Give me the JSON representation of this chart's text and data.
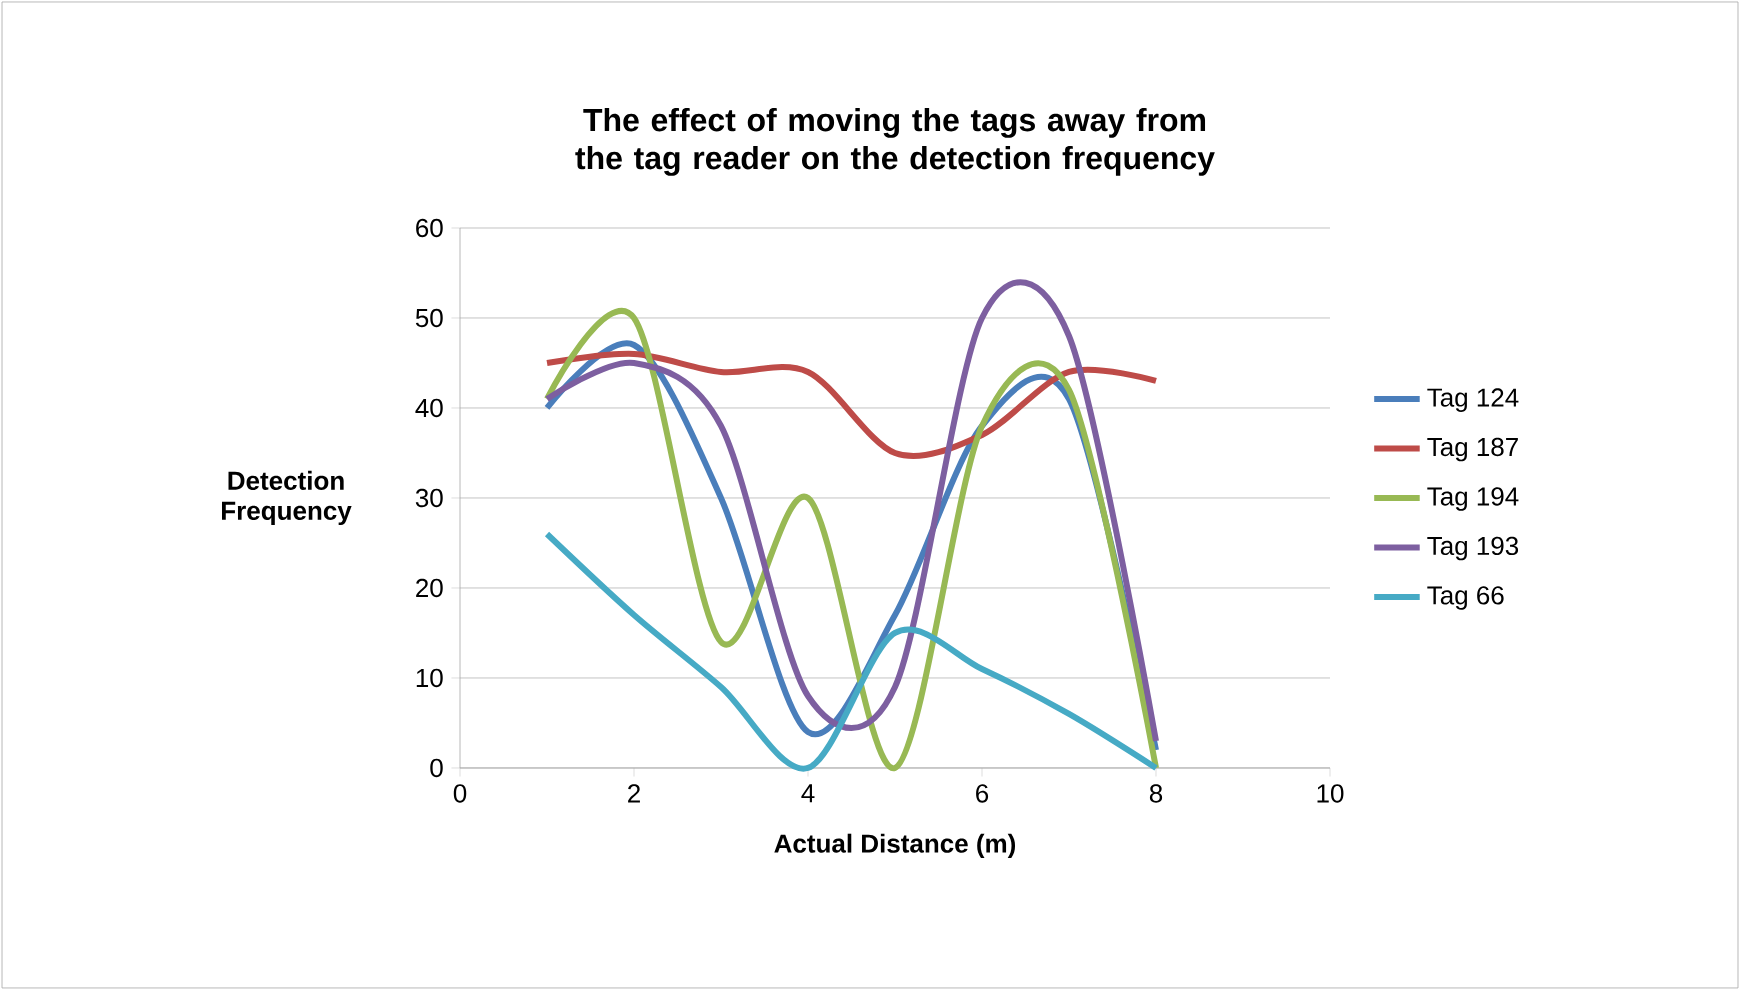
{
  "chart_data": {
    "type": "line",
    "title": "The effect of moving the tags away from the tag reader on the detection frequency",
    "xlabel": "Actual Distance (m)",
    "ylabel": "Detection Frequency",
    "x": [
      1,
      2,
      3,
      4,
      5,
      6,
      7,
      8
    ],
    "series": [
      {
        "name": "Tag 124",
        "color": "#4a7ebb",
        "values": [
          40,
          47,
          30,
          4,
          17,
          38,
          41,
          2
        ]
      },
      {
        "name": "Tag 187",
        "color": "#be4b48",
        "values": [
          45,
          46,
          44,
          44,
          35,
          37,
          44,
          43
        ]
      },
      {
        "name": "Tag 194",
        "color": "#98b954",
        "values": [
          41,
          50,
          14,
          30,
          0,
          38,
          42,
          0
        ]
      },
      {
        "name": "Tag 193",
        "color": "#7d5fa0",
        "values": [
          41,
          45,
          38,
          8,
          9,
          50,
          48,
          3
        ]
      },
      {
        "name": "Tag 66",
        "color": "#46aac5",
        "values": [
          26,
          17,
          9,
          0,
          15,
          11,
          6,
          0
        ]
      }
    ],
    "xlim": [
      0,
      10
    ],
    "xticks": [
      0,
      2,
      4,
      6,
      8,
      10
    ],
    "ylim": [
      0,
      60
    ],
    "yticks": [
      0,
      10,
      20,
      30,
      40,
      50,
      60
    ],
    "grid": "y",
    "legend": "right",
    "marker": "none",
    "line_style": "solid"
  }
}
